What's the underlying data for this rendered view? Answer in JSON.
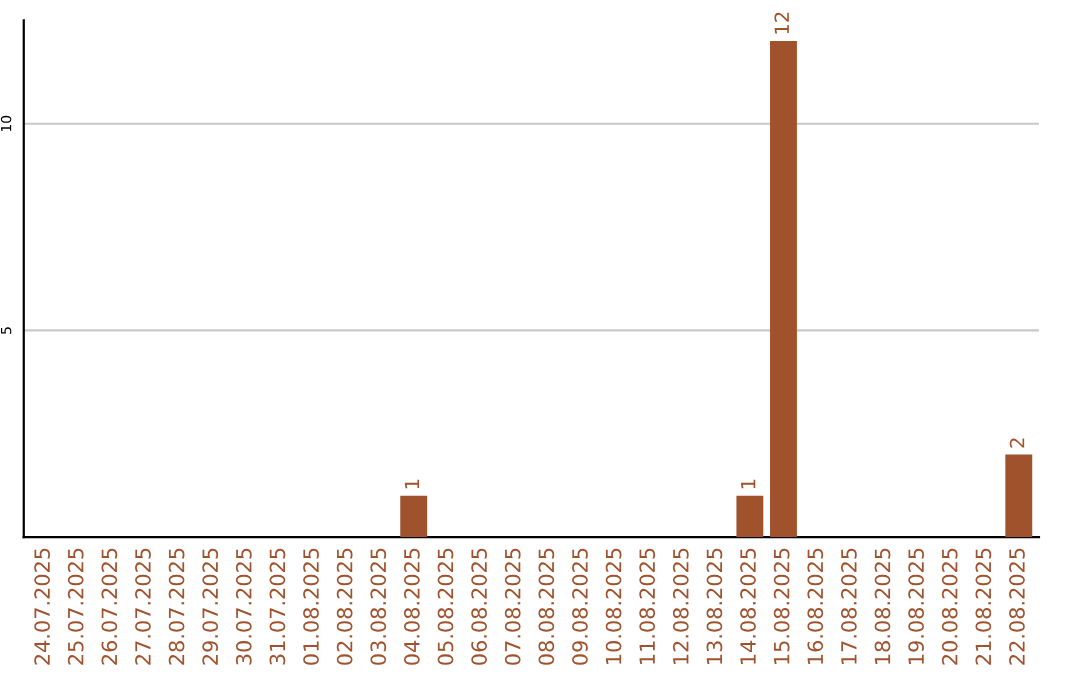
{
  "chart_data": {
    "type": "bar",
    "categories": [
      "24.07.2025",
      "25.07.2025",
      "26.07.2025",
      "27.07.2025",
      "28.07.2025",
      "29.07.2025",
      "30.07.2025",
      "31.07.2025",
      "01.08.2025",
      "02.08.2025",
      "03.08.2025",
      "04.08.2025",
      "05.08.2025",
      "06.08.2025",
      "07.08.2025",
      "08.08.2025",
      "09.08.2025",
      "10.08.2025",
      "11.08.2025",
      "12.08.2025",
      "13.08.2025",
      "14.08.2025",
      "15.08.2025",
      "16.08.2025",
      "17.08.2025",
      "18.08.2025",
      "19.08.2025",
      "20.08.2025",
      "21.08.2025",
      "22.08.2025"
    ],
    "values": [
      0,
      0,
      0,
      0,
      0,
      0,
      0,
      0,
      0,
      0,
      0,
      1,
      0,
      0,
      0,
      0,
      0,
      0,
      0,
      0,
      0,
      1,
      12,
      0,
      0,
      0,
      0,
      0,
      0,
      2
    ],
    "value_labels": [
      null,
      null,
      null,
      null,
      null,
      null,
      null,
      null,
      null,
      null,
      null,
      "1",
      null,
      null,
      null,
      null,
      null,
      null,
      null,
      null,
      null,
      "1",
      "12",
      null,
      null,
      null,
      null,
      null,
      null,
      "2"
    ],
    "color": "#a0522d",
    "ylim": [
      0,
      12.5
    ],
    "yticks": [
      5,
      10
    ],
    "grid": "y"
  }
}
